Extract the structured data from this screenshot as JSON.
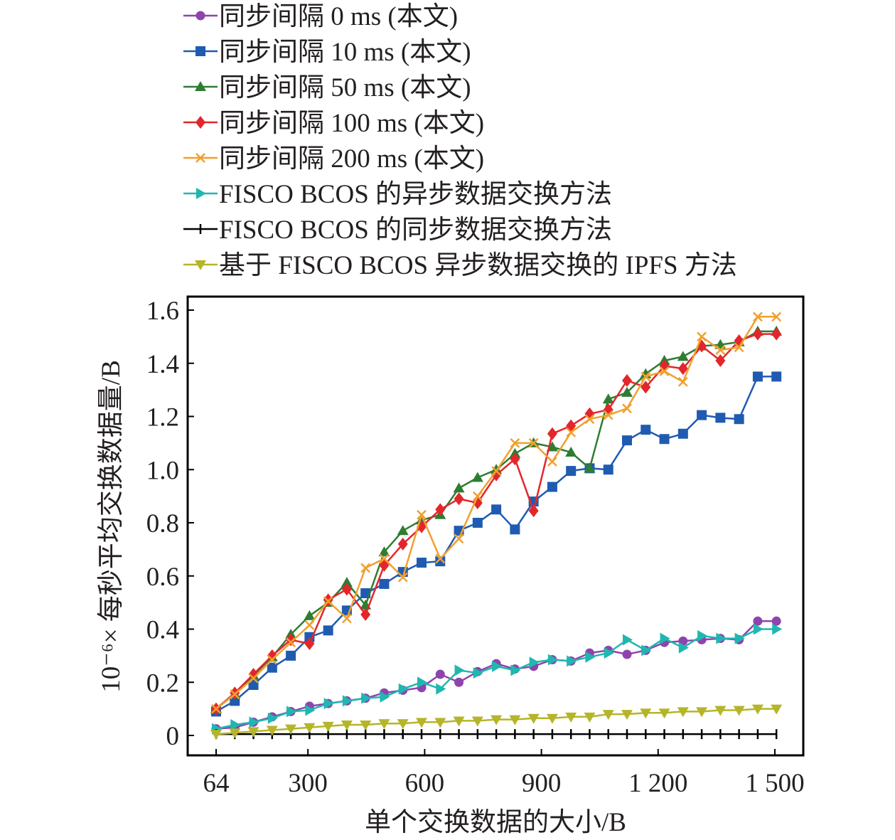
{
  "chart_data": {
    "type": "line",
    "title": "",
    "xlabel": "单个交换数据的大小/B",
    "ylabel": "10⁻⁶× 每秒平均交换数据量/B",
    "xlim": [
      0,
      1600
    ],
    "ylim": [
      -0.07,
      1.65
    ],
    "x_ticks": [
      64,
      300,
      600,
      900,
      1200,
      1500
    ],
    "x_tick_labels": [
      "64",
      "300",
      "600",
      "900",
      "1 200",
      "1 500"
    ],
    "y_ticks": [
      0,
      0.2,
      0.4,
      0.6,
      0.8,
      1.0,
      1.2,
      1.4,
      1.6
    ],
    "y_tick_labels": [
      "0",
      "0.2",
      "0.4",
      "0.6",
      "0.8",
      "1.0",
      "1.2",
      "1.4",
      "1.6"
    ],
    "grid": false,
    "legend_position": "top",
    "x": [
      64,
      112,
      160,
      208,
      256,
      304,
      352,
      400,
      448,
      496,
      544,
      592,
      640,
      688,
      736,
      784,
      832,
      880,
      928,
      976,
      1024,
      1072,
      1120,
      1168,
      1216,
      1264,
      1312,
      1360,
      1408,
      1456,
      1504
    ],
    "series": [
      {
        "name": "同步间隔 0 ms (本文)",
        "color": "#8e44ad",
        "marker": "circle",
        "values": [
          0.025,
          0.03,
          0.05,
          0.07,
          0.09,
          0.11,
          0.12,
          0.13,
          0.14,
          0.16,
          0.17,
          0.18,
          0.23,
          0.2,
          0.24,
          0.27,
          0.25,
          0.26,
          0.285,
          0.28,
          0.31,
          0.32,
          0.305,
          0.32,
          0.35,
          0.355,
          0.36,
          0.365,
          0.36,
          0.43,
          0.43
        ]
      },
      {
        "name": "同步间隔 10 ms (本文)",
        "color": "#1f5bb0",
        "marker": "square",
        "values": [
          0.09,
          0.13,
          0.19,
          0.255,
          0.3,
          0.37,
          0.395,
          0.47,
          0.535,
          0.57,
          0.615,
          0.65,
          0.655,
          0.77,
          0.8,
          0.85,
          0.775,
          0.88,
          0.935,
          0.995,
          1.005,
          1.0,
          1.11,
          1.15,
          1.115,
          1.135,
          1.205,
          1.195,
          1.19,
          1.35,
          1.35
        ]
      },
      {
        "name": "同步间隔 50 ms (本文)",
        "color": "#2e7d32",
        "marker": "triangle-up",
        "values": [
          0.1,
          0.155,
          0.225,
          0.295,
          0.38,
          0.45,
          0.5,
          0.575,
          0.49,
          0.69,
          0.77,
          0.81,
          0.83,
          0.93,
          0.97,
          1.0,
          1.06,
          1.1,
          1.085,
          1.065,
          1.005,
          1.265,
          1.29,
          1.36,
          1.41,
          1.425,
          1.465,
          1.47,
          1.48,
          1.52,
          1.52
        ]
      },
      {
        "name": "同步间隔 100 ms (本文)",
        "color": "#e3262b",
        "marker": "diamond",
        "values": [
          0.1,
          0.16,
          0.23,
          0.3,
          0.36,
          0.345,
          0.51,
          0.55,
          0.455,
          0.64,
          0.72,
          0.785,
          0.85,
          0.89,
          0.875,
          0.98,
          1.04,
          0.845,
          1.135,
          1.165,
          1.21,
          1.225,
          1.335,
          1.31,
          1.39,
          1.38,
          1.465,
          1.41,
          1.485,
          1.51,
          1.51
        ]
      },
      {
        "name": "同步间隔 200 ms (本文)",
        "color": "#f0a030",
        "marker": "x",
        "values": [
          0.1,
          0.155,
          0.215,
          0.285,
          0.35,
          0.415,
          0.505,
          0.44,
          0.63,
          0.665,
          0.595,
          0.83,
          0.665,
          0.74,
          0.9,
          0.995,
          1.1,
          1.1,
          1.03,
          1.14,
          1.19,
          1.205,
          1.23,
          1.35,
          1.37,
          1.33,
          1.5,
          1.45,
          1.46,
          1.575,
          1.575
        ]
      },
      {
        "name": "FISCO BCOS 的异步数据交换方法",
        "color": "#1fb7b0",
        "marker": "triangle-right",
        "values": [
          0.025,
          0.04,
          0.05,
          0.065,
          0.09,
          0.095,
          0.12,
          0.13,
          0.14,
          0.145,
          0.175,
          0.2,
          0.175,
          0.245,
          0.235,
          0.26,
          0.245,
          0.275,
          0.285,
          0.28,
          0.295,
          0.31,
          0.36,
          0.32,
          0.365,
          0.33,
          0.375,
          0.365,
          0.365,
          0.4,
          0.4
        ]
      },
      {
        "name": "FISCO BCOS 的同步数据交换方法",
        "color": "#000000",
        "marker": "plus",
        "values": [
          0.005,
          0.005,
          0.005,
          0.005,
          0.005,
          0.005,
          0.005,
          0.005,
          0.005,
          0.005,
          0.005,
          0.005,
          0.005,
          0.005,
          0.005,
          0.005,
          0.005,
          0.005,
          0.005,
          0.005,
          0.005,
          0.005,
          0.005,
          0.005,
          0.005,
          0.005,
          0.005,
          0.005,
          0.005,
          0.005,
          0.005
        ]
      },
      {
        "name": "基于 FISCO BCOS 异步数据交换的 IPFS 方法",
        "color": "#b5b52a",
        "marker": "triangle-down",
        "values": [
          0.005,
          0.01,
          0.015,
          0.02,
          0.025,
          0.03,
          0.035,
          0.04,
          0.04,
          0.045,
          0.045,
          0.05,
          0.05,
          0.055,
          0.055,
          0.06,
          0.06,
          0.065,
          0.065,
          0.07,
          0.07,
          0.08,
          0.08,
          0.085,
          0.085,
          0.09,
          0.09,
          0.095,
          0.095,
          0.1,
          0.1
        ]
      }
    ]
  }
}
